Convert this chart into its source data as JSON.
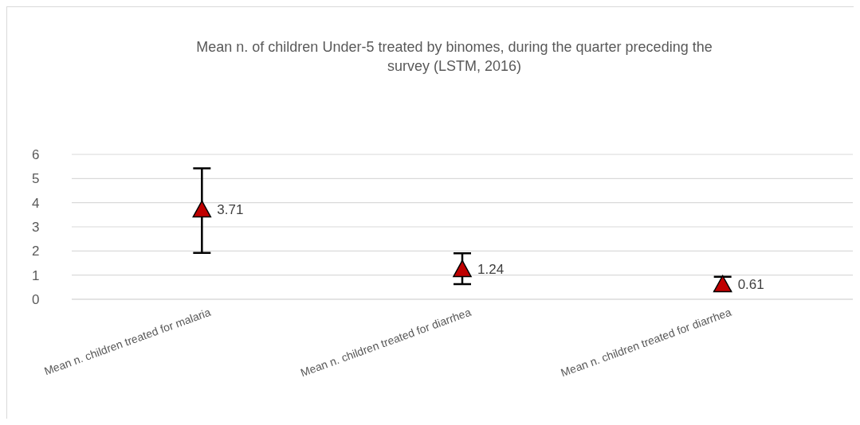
{
  "chart_data": {
    "type": "scatter",
    "title": "Mean n. of children Under-5 treated by binomes, during the quarter preceding the survey (LSTM, 2016)",
    "categories": [
      "Mean n. children treated for malaria",
      "Mean n. children treated for diarrhea",
      "Mean n. children treated for diarrhea"
    ],
    "series": [
      {
        "color": "#c00000",
        "values": [
          3.71,
          1.24,
          0.61
        ],
        "errors": [
          [
            1.92,
            5.42
          ],
          [
            0.63,
            1.9
          ],
          [
            0.34,
            0.93
          ]
        ]
      }
    ],
    "ylim": [
      0,
      6
    ],
    "yticks": [
      0,
      1,
      2,
      3,
      4,
      5,
      6
    ],
    "grid": "y",
    "marker": "triangle",
    "data_labels": true
  }
}
